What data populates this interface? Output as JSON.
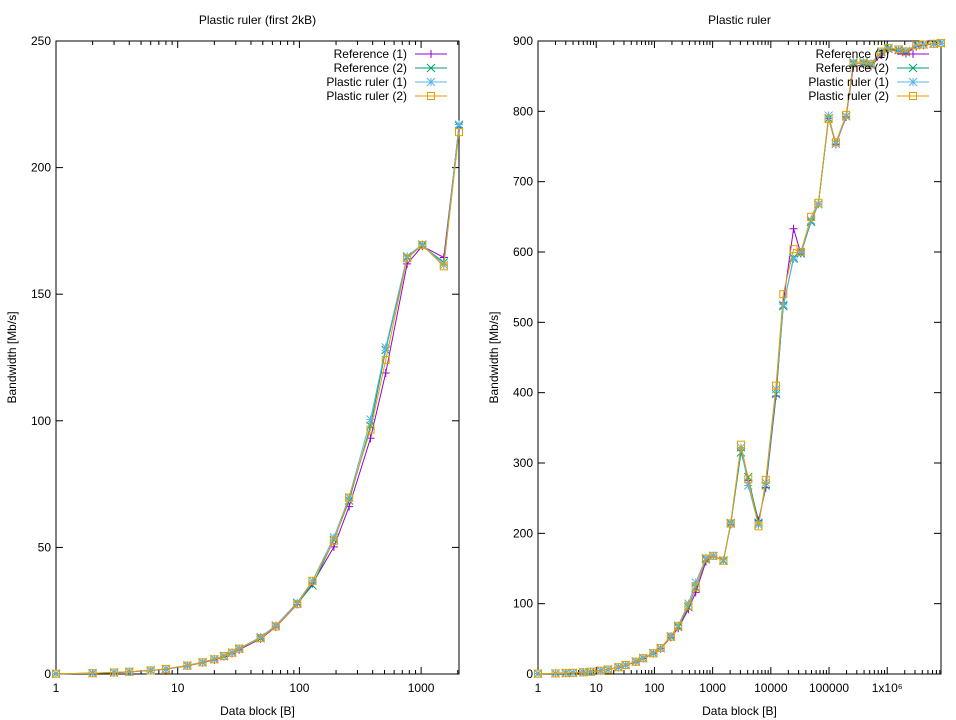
{
  "chart_data": [
    {
      "type": "line",
      "title": "Plastic ruler (first 2kB)",
      "xlabel": "Data block [B]",
      "ylabel": "Bandwidth [Mb/s]",
      "xscale": "log",
      "xlim": [
        1,
        2048
      ],
      "ylim": [
        0,
        250
      ],
      "x_ticks": [
        "1",
        "10",
        "100",
        "1000"
      ],
      "y_ticks": [
        "0",
        "50",
        "100",
        "150",
        "200",
        "250"
      ],
      "legend_position": "top-right",
      "x": [
        1,
        2,
        3,
        4,
        6,
        8,
        12,
        16,
        20,
        24,
        28,
        32,
        48,
        64,
        96,
        128,
        192,
        256,
        384,
        512,
        768,
        1024,
        1536,
        2048
      ],
      "series": [
        {
          "name": "Reference (1)",
          "color": "#9400d3",
          "marker": "plus",
          "values": [
            0.1,
            0.3,
            0.5,
            0.8,
            1.4,
            1.9,
            3.2,
            4.5,
            5.6,
            6.9,
            8.2,
            9.6,
            13.9,
            18.6,
            27.5,
            35.7,
            50.2,
            66.1,
            93.1,
            118.9,
            162.0,
            169.0,
            164.5,
            215.8
          ]
        },
        {
          "name": "Reference (2)",
          "color": "#009e73",
          "marker": "cross",
          "values": [
            0.1,
            0.3,
            0.6,
            0.9,
            1.4,
            2.0,
            3.3,
            4.6,
            5.8,
            7.0,
            8.4,
            9.9,
            14.1,
            19.0,
            27.9,
            35.0,
            53.0,
            68.5,
            98.0,
            128.0,
            164.5,
            169.2,
            162.5,
            216.5
          ]
        },
        {
          "name": "Plastic ruler (1)",
          "color": "#56b4e9",
          "marker": "star",
          "values": [
            0.1,
            0.3,
            0.6,
            0.9,
            1.5,
            2.0,
            3.4,
            4.7,
            5.9,
            7.2,
            8.5,
            10.1,
            14.6,
            19.2,
            28.2,
            36.8,
            53.9,
            69.8,
            100.5,
            129.0,
            165.0,
            169.7,
            161.5,
            217.0
          ]
        },
        {
          "name": "Plastic ruler (2)",
          "color": "#e69f00",
          "marker": "box",
          "values": [
            0.1,
            0.3,
            0.6,
            0.9,
            1.4,
            2.0,
            3.3,
            4.6,
            5.8,
            7.1,
            8.4,
            10.0,
            14.2,
            18.8,
            27.6,
            36.8,
            52.6,
            69.6,
            96.5,
            124.0,
            164.2,
            169.4,
            161.0,
            214.0
          ]
        }
      ]
    },
    {
      "type": "line",
      "title": "Plastic ruler",
      "xlabel": "Data block [B]",
      "ylabel": "Bandwidth [Mb/s]",
      "xscale": "log",
      "xlim": [
        1,
        8388608
      ],
      "ylim": [
        0,
        900
      ],
      "x_ticks": [
        "1",
        "10",
        "100",
        "1000",
        "10000",
        "100000",
        "1x10⁶"
      ],
      "y_ticks": [
        "0",
        "100",
        "200",
        "300",
        "400",
        "500",
        "600",
        "700",
        "800",
        "900"
      ],
      "legend_position": "top-right",
      "x": [
        1,
        2,
        3,
        4,
        6,
        8,
        12,
        16,
        24,
        32,
        48,
        64,
        96,
        128,
        192,
        256,
        384,
        512,
        768,
        1024,
        1536,
        2048,
        3072,
        4096,
        6144,
        8192,
        12288,
        16384,
        24576,
        32768,
        49152,
        65536,
        98304,
        131072,
        196608,
        262144,
        393216,
        524288,
        786432,
        1048576,
        1572864,
        2097152,
        3145728,
        4194304,
        6291456,
        8388608
      ],
      "series": [
        {
          "name": "Reference (1)",
          "color": "#9400d3",
          "marker": "plus",
          "values": [
            0.5,
            0.8,
            1.2,
            1.6,
            2.4,
            3.2,
            4.8,
            6.4,
            9.5,
            12.5,
            17.0,
            22.0,
            29.0,
            36.0,
            52.0,
            65.0,
            92.0,
            116.0,
            160.0,
            168.0,
            162.0,
            213.0,
            318.0,
            275.0,
            218.0,
            265.0,
            395.0,
            528.0,
            633.0,
            598.0,
            645.0,
            668.0,
            790.0,
            753.0,
            792.0,
            864.0,
            866.0,
            864.0,
            880.0,
            888.0,
            886.0,
            882.0,
            892.0,
            894.0,
            896.0,
            897.0
          ]
        },
        {
          "name": "Reference (2)",
          "color": "#009e73",
          "marker": "cross",
          "values": [
            0.5,
            0.8,
            1.2,
            1.6,
            2.4,
            3.2,
            4.8,
            6.4,
            9.6,
            12.8,
            17.5,
            22.5,
            29.5,
            36.5,
            53.0,
            67.0,
            95.0,
            123.0,
            163.0,
            168.0,
            161.0,
            214.0,
            315.0,
            280.0,
            215.0,
            268.0,
            398.0,
            523.0,
            592.0,
            598.0,
            643.0,
            668.0,
            790.0,
            754.0,
            793.0,
            868.0,
            868.0,
            866.0,
            884.0,
            889.0,
            887.0,
            884.0,
            894.0,
            895.0,
            896.0,
            897.0
          ]
        },
        {
          "name": "Plastic ruler (1)",
          "color": "#56b4e9",
          "marker": "star",
          "values": [
            0.5,
            0.8,
            1.2,
            1.6,
            2.4,
            3.2,
            4.8,
            6.4,
            9.6,
            12.8,
            18.0,
            23.0,
            30.0,
            37.0,
            54.0,
            69.0,
            100.0,
            130.0,
            165.0,
            168.0,
            162.0,
            215.0,
            322.0,
            268.0,
            212.0,
            272.0,
            405.0,
            525.0,
            590.0,
            600.0,
            645.0,
            668.0,
            794.0,
            754.0,
            793.0,
            870.0,
            870.0,
            868.0,
            885.0,
            890.0,
            888.0,
            886.0,
            894.0,
            895.0,
            896.0,
            897.0
          ]
        },
        {
          "name": "Plastic ruler (2)",
          "color": "#e69f00",
          "marker": "box",
          "values": [
            0.5,
            0.8,
            1.2,
            1.6,
            2.4,
            3.2,
            4.8,
            6.4,
            9.6,
            12.8,
            17.5,
            22.5,
            29.5,
            37.0,
            53.0,
            68.0,
            97.0,
            124.0,
            164.0,
            168.0,
            161.0,
            214.0,
            326.0,
            277.0,
            210.0,
            276.0,
            410.0,
            540.0,
            604.0,
            600.0,
            650.0,
            670.0,
            789.0,
            756.0,
            795.0,
            868.0,
            868.0,
            867.0,
            885.0,
            890.0,
            888.0,
            885.0,
            894.0,
            895.0,
            896.0,
            897.0
          ]
        }
      ]
    }
  ]
}
